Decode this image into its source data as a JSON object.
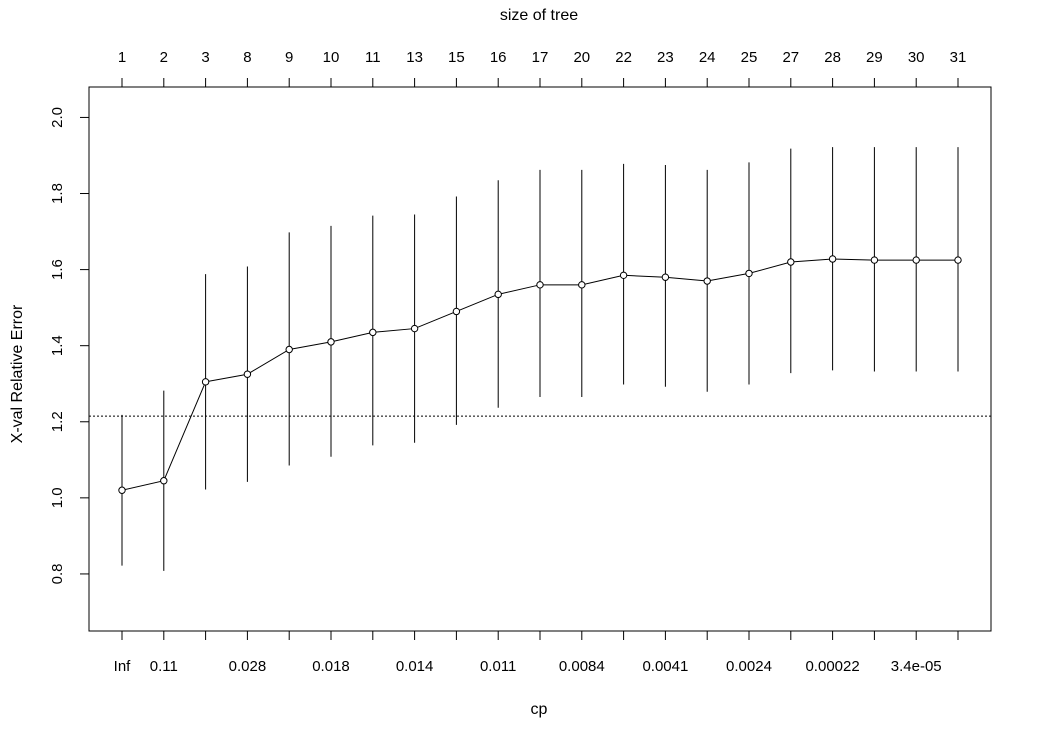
{
  "chart_data": {
    "type": "line",
    "title": "",
    "xlabel": "cp",
    "ylabel": "X-val Relative Error",
    "top_axis_label": "size of tree",
    "size_of_tree": [
      "1",
      "2",
      "3",
      "8",
      "9",
      "10",
      "11",
      "13",
      "15",
      "16",
      "17",
      "20",
      "22",
      "23",
      "24",
      "25",
      "27",
      "28",
      "29",
      "30",
      "31"
    ],
    "cp_tick_labels": [
      "Inf",
      "0.11",
      "",
      "0.028",
      "",
      "0.018",
      "",
      "0.014",
      "",
      "0.011",
      "",
      "0.0084",
      "",
      "0.0041",
      "",
      "0.0024",
      "",
      "0.00022",
      "",
      "3.4e-05",
      ""
    ],
    "y_ticks": [
      "0.8",
      "1.0",
      "1.2",
      "1.4",
      "1.6",
      "1.8",
      "2.0"
    ],
    "ylim": [
      0.65,
      2.08
    ],
    "xerror": [
      1.02,
      1.045,
      1.305,
      1.325,
      1.39,
      1.41,
      1.435,
      1.445,
      1.49,
      1.535,
      1.56,
      1.56,
      1.585,
      1.58,
      1.57,
      1.59,
      1.62,
      1.628,
      1.625,
      1.625,
      1.625
    ],
    "error_lower": [
      0.822,
      0.808,
      1.022,
      1.042,
      1.085,
      1.108,
      1.138,
      1.145,
      1.192,
      1.237,
      1.265,
      1.265,
      1.298,
      1.292,
      1.279,
      1.298,
      1.328,
      1.335,
      1.332,
      1.332,
      1.332
    ],
    "error_upper": [
      1.218,
      1.282,
      1.588,
      1.608,
      1.698,
      1.715,
      1.742,
      1.745,
      1.792,
      1.835,
      1.862,
      1.862,
      1.878,
      1.875,
      1.862,
      1.882,
      1.918,
      1.922,
      1.922,
      1.922,
      1.922
    ],
    "reference_line": 1.215,
    "grid": false,
    "legend": "none"
  }
}
